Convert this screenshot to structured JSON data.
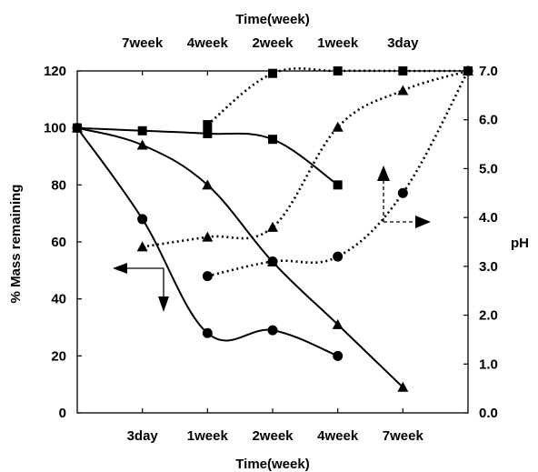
{
  "chart_data": {
    "type": "line",
    "top_axis": {
      "title": "Time(week)",
      "tick_labels": [
        "7week",
        "4week",
        "2week",
        "1week",
        "3day"
      ]
    },
    "bottom_axis": {
      "title": "Time(week)",
      "tick_labels": [
        "3day",
        "1week",
        "2week",
        "4week",
        "7week"
      ]
    },
    "left_axis": {
      "title": "% Mass remaining",
      "range": [
        0,
        120
      ],
      "ticks": [
        "0",
        "20",
        "40",
        "60",
        "80",
        "100",
        "120"
      ]
    },
    "right_axis": {
      "title": "pH",
      "range": [
        0,
        7
      ],
      "ticks": [
        "0.0",
        "1.0",
        "2.0",
        "3.0",
        "4.0",
        "5.0",
        "6.0",
        "7.0"
      ]
    },
    "x_positions_note": "category index along bottom axis: 0 = origin, 1 = 3day, 2 = 1week, 3 = 2week, 4 = 4week, 5 = 7week, 6 = right edge",
    "series": [
      {
        "marker": "square",
        "line": "solid",
        "axis": "left",
        "points": [
          [
            0,
            100
          ],
          [
            1,
            99
          ],
          [
            2,
            98
          ],
          [
            3,
            96
          ],
          [
            4,
            80
          ]
        ]
      },
      {
        "marker": "triangle",
        "line": "solid",
        "axis": "left",
        "points": [
          [
            0,
            100
          ],
          [
            1,
            94
          ],
          [
            2,
            80
          ],
          [
            3,
            53
          ],
          [
            4,
            31
          ],
          [
            5,
            9
          ]
        ]
      },
      {
        "marker": "circle",
        "line": "solid",
        "axis": "left",
        "points": [
          [
            0,
            100
          ],
          [
            1,
            68
          ],
          [
            2,
            28
          ],
          [
            3,
            29
          ],
          [
            4,
            20
          ]
        ]
      },
      {
        "marker": "square",
        "line": "dotted",
        "axis": "right",
        "points": [
          [
            2,
            5.9
          ],
          [
            3,
            6.95
          ],
          [
            4,
            7.0
          ],
          [
            5,
            7.0
          ],
          [
            6,
            7.0
          ]
        ]
      },
      {
        "marker": "triangle",
        "line": "dotted",
        "axis": "right",
        "points": [
          [
            1,
            3.4
          ],
          [
            2,
            3.6
          ],
          [
            3,
            3.8
          ],
          [
            4,
            5.85
          ],
          [
            5,
            6.6
          ],
          [
            6,
            7.0
          ]
        ]
      },
      {
        "marker": "circle",
        "line": "dotted",
        "axis": "right",
        "points": [
          [
            2,
            2.8
          ],
          [
            3,
            3.1
          ],
          [
            4,
            3.2
          ],
          [
            5,
            4.5
          ],
          [
            6,
            7.0
          ]
        ]
      }
    ],
    "annotations": [
      {
        "kind": "arrow-group",
        "points_to": [
          "left",
          "down"
        ],
        "meaning": "solid series read on left and bottom axes"
      },
      {
        "kind": "arrow-group",
        "points_to": [
          "up",
          "right"
        ],
        "meaning": "dotted series read on right and top axes"
      }
    ]
  }
}
